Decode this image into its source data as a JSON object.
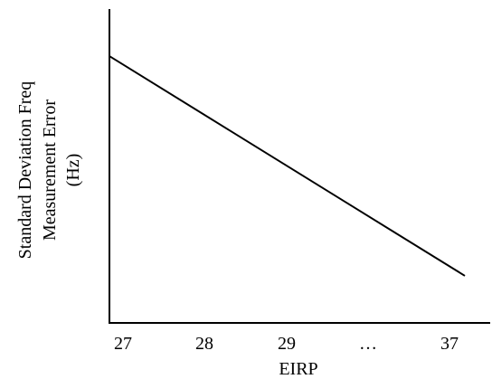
{
  "chart_data": {
    "type": "line",
    "title": "",
    "xlabel": "EIRP",
    "ylabel_lines": [
      "Standard Deviation Freq",
      "Measurement Error",
      "(Hz)"
    ],
    "x_tick_labels": [
      "27",
      "28",
      "29",
      "…",
      "37"
    ],
    "y_ticks": [],
    "grid": false,
    "legend": "none",
    "series": [
      {
        "x": [
          27,
          37
        ],
        "y": [
          0.85,
          0.15
        ]
      }
    ],
    "y_range": [
      0,
      1
    ],
    "colors": {
      "axis": "#000000",
      "line": "#000000"
    }
  }
}
